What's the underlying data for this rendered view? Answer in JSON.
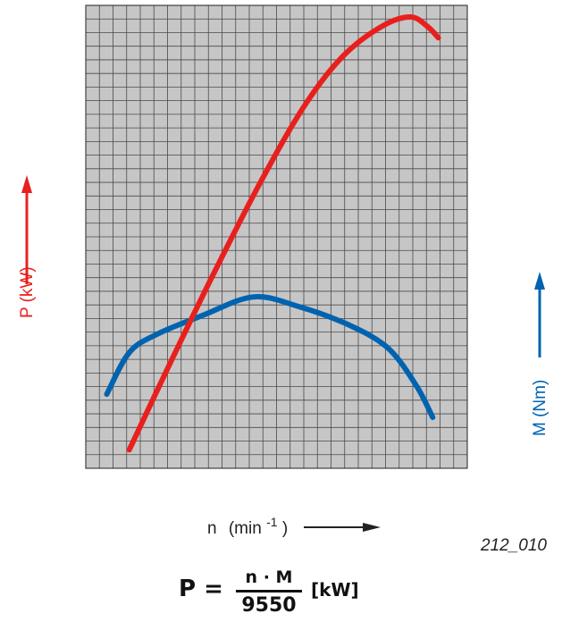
{
  "chart_data": {
    "type": "line",
    "grid": true,
    "x_axis": {
      "label_symbol": "n",
      "label_unit": "(min",
      "label_exp": "-1",
      "label_close": ")"
    },
    "y_axis_left": {
      "label": "P (kW)",
      "color": "#e8201d"
    },
    "y_axis_right": {
      "label": "M (Nm)",
      "color": "#0063b0"
    },
    "series": [
      {
        "name": "P (kW)",
        "color": "#e8201d",
        "points": [
          [
            0.23,
            0.04
          ],
          [
            0.3,
            0.22
          ],
          [
            0.38,
            0.42
          ],
          [
            0.46,
            0.61
          ],
          [
            0.54,
            0.78
          ],
          [
            0.61,
            0.89
          ],
          [
            0.68,
            0.955
          ],
          [
            0.73,
            0.975
          ],
          [
            0.76,
            0.955
          ],
          [
            0.78,
            0.93
          ]
        ]
      },
      {
        "name": "M (Nm)",
        "color": "#0063b0",
        "points": [
          [
            0.19,
            0.16
          ],
          [
            0.23,
            0.25
          ],
          [
            0.28,
            0.29
          ],
          [
            0.36,
            0.33
          ],
          [
            0.45,
            0.37
          ],
          [
            0.53,
            0.35
          ],
          [
            0.62,
            0.31
          ],
          [
            0.69,
            0.26
          ],
          [
            0.74,
            0.18
          ],
          [
            0.77,
            0.11
          ]
        ]
      }
    ]
  },
  "formula": {
    "lhs": "P =",
    "numerator": "n · M",
    "denominator": "9550",
    "unit": "[kW]"
  },
  "figure_code": "212_010"
}
